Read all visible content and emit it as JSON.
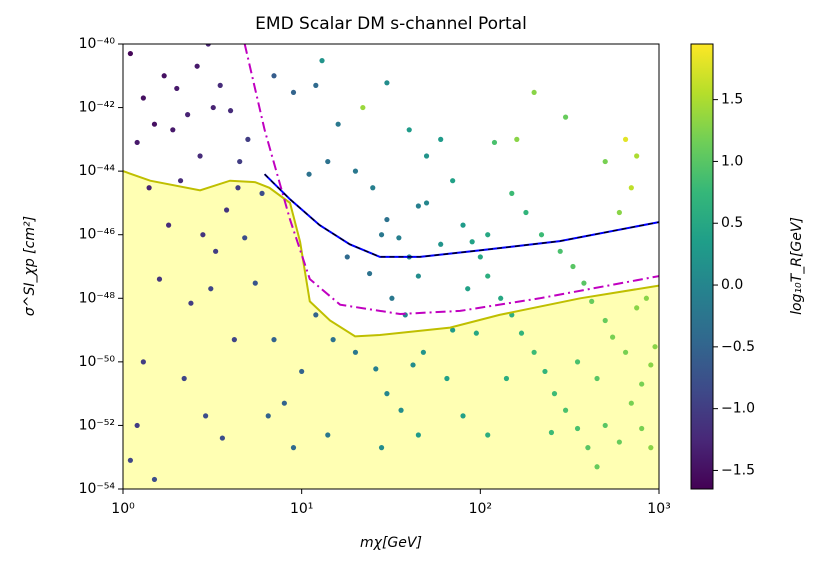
{
  "chart_data": {
    "type": "scatter",
    "title": "EMD Scalar DM s-channel Portal",
    "xlabel": "mχ[GeV]",
    "ylabel": "σ^SI_χp [cm²]",
    "xscale": "log",
    "yscale": "log",
    "xlim": [
      1,
      1000
    ],
    "ylim": [
      1e-54,
      1e-40
    ],
    "xticks": [
      {
        "value": 1,
        "label": "10⁰"
      },
      {
        "value": 10,
        "label": "10¹"
      },
      {
        "value": 100,
        "label": "10²"
      },
      {
        "value": 1000,
        "label": "10³"
      }
    ],
    "yticks": [
      {
        "value": 1e-54,
        "label": "10⁻⁵⁴"
      },
      {
        "value": 1e-52,
        "label": "10⁻⁵²"
      },
      {
        "value": 1e-50,
        "label": "10⁻⁵⁰"
      },
      {
        "value": 1e-48,
        "label": "10⁻⁴⁸"
      },
      {
        "value": 1e-46,
        "label": "10⁻⁴⁶"
      },
      {
        "value": 1e-44,
        "label": "10⁻⁴⁴"
      },
      {
        "value": 1e-42,
        "label": "10⁻⁴²"
      },
      {
        "value": 1e-40,
        "label": "10⁻⁴⁰"
      }
    ],
    "colormap": "viridis",
    "clim": [
      -1.65,
      1.95
    ],
    "colorbar_label": "log₁₀T_R[GeV]",
    "cticks": [
      {
        "value": -1.5,
        "label": "−1.5"
      },
      {
        "value": -1,
        "label": "−1.0"
      },
      {
        "value": -0.5,
        "label": "−0.5"
      },
      {
        "value": 0,
        "label": "0.0"
      },
      0.5,
      {
        "value": 1,
        "label": "1.0"
      },
      1.5
    ],
    "x": [
      1.1,
      1.3,
      1.5,
      1.2,
      1.7,
      2.0,
      2.3,
      2.6,
      3.0,
      3.5,
      4.0,
      1.4,
      1.8,
      2.1,
      2.8,
      3.3,
      3.8,
      4.5,
      1.6,
      2.4,
      3.1,
      4.2,
      1.3,
      2.2,
      2.9,
      1.2,
      4.8,
      5.5,
      6.5,
      3.6,
      1.1,
      1.5,
      7.0,
      2.7,
      4.4,
      1.9,
      3.2,
      6.0,
      5.0,
      7,
      9,
      12,
      11,
      14,
      16,
      20,
      22,
      25,
      28,
      30,
      35,
      40,
      45,
      18,
      24,
      32,
      38,
      15,
      20,
      26,
      30,
      36,
      42,
      48,
      12,
      10,
      9,
      14,
      28,
      45,
      8,
      50,
      50,
      40,
      30,
      13,
      45,
      60,
      70,
      80,
      90,
      100,
      110,
      130,
      150,
      170,
      200,
      230,
      260,
      300,
      350,
      400,
      450,
      500,
      600,
      700,
      800,
      900,
      950,
      120,
      150,
      180,
      220,
      280,
      330,
      380,
      420,
      500,
      550,
      650,
      750,
      850,
      600,
      700,
      650,
      750,
      500,
      300,
      200,
      160,
      80,
      110,
      65,
      95,
      140,
      250,
      350,
      450,
      800,
      900,
      70,
      85,
      60,
      110
    ],
    "values": [
      5e-41,
      2e-42,
      3e-43,
      8e-44,
      1e-41,
      4e-42,
      6e-43,
      2e-41,
      1e-40,
      5e-42,
      8e-43,
      3e-45,
      2e-46,
      5e-45,
      1e-46,
      3e-47,
      6e-46,
      2e-44,
      4e-48,
      7e-49,
      2e-48,
      5e-50,
      1e-50,
      3e-51,
      2e-52,
      1e-52,
      8e-47,
      3e-48,
      2e-52,
      4e-53,
      8e-54,
      2e-54,
      5e-50,
      3e-44,
      3e-45,
      2e-43,
      1e-42,
      2e-45,
      1e-43,
      1e-41,
      3e-42,
      5e-42,
      8e-45,
      2e-44,
      3e-43,
      1e-44,
      1e-42,
      3e-45,
      1e-46,
      3e-46,
      8e-47,
      2e-47,
      5e-48,
      2e-47,
      6e-48,
      1e-48,
      3e-49,
      5e-50,
      2e-50,
      6e-51,
      1e-51,
      3e-52,
      8e-51,
      2e-50,
      3e-49,
      5e-51,
      2e-53,
      5e-53,
      2e-53,
      5e-53,
      5e-52,
      1e-45,
      3e-44,
      2e-43,
      6e-42,
      3e-41,
      8e-46,
      1e-43,
      5e-45,
      2e-46,
      6e-47,
      2e-47,
      5e-48,
      1e-48,
      3e-49,
      8e-50,
      2e-50,
      5e-51,
      1e-51,
      3e-52,
      8e-53,
      2e-53,
      5e-54,
      1e-52,
      3e-53,
      5e-52,
      2e-51,
      8e-51,
      3e-50,
      8e-44,
      2e-45,
      5e-46,
      1e-46,
      3e-47,
      1e-47,
      3e-48,
      8e-49,
      2e-49,
      6e-50,
      2e-50,
      5e-49,
      1e-48,
      5e-46,
      3e-45,
      1e-43,
      3e-44,
      2e-44,
      5e-43,
      3e-42,
      1e-43,
      2e-52,
      5e-53,
      3e-51,
      8e-50,
      3e-51,
      6e-53,
      1e-50,
      3e-51,
      8e-53,
      2e-53,
      1e-49,
      2e-48,
      5e-47,
      1e-46
    ],
    "c": [
      -1.6,
      -1.5,
      -1.5,
      -1.4,
      -1.5,
      -1.4,
      -1.3,
      -1.4,
      -1.3,
      -1.2,
      -1.2,
      -1.3,
      -1.2,
      -1.2,
      -1.1,
      -1.0,
      -1.1,
      -1.0,
      -1.1,
      -1.0,
      -0.9,
      -0.9,
      -1.0,
      -0.9,
      -0.8,
      -1.0,
      -0.8,
      -0.7,
      -0.5,
      -0.8,
      -0.9,
      -0.8,
      -0.5,
      -1.2,
      -1.0,
      -1.4,
      -1.3,
      -0.8,
      -1.0,
      -0.6,
      -0.5,
      -0.4,
      -0.3,
      -0.3,
      -0.2,
      -0.2,
      1.4,
      -0.1,
      -0.2,
      -0.3,
      -0.1,
      0.0,
      0.1,
      -0.4,
      -0.3,
      -0.2,
      0.0,
      -0.3,
      -0.2,
      -0.1,
      0.0,
      0.1,
      0.1,
      0.2,
      -0.5,
      -0.5,
      -0.4,
      -0.2,
      0.1,
      0.3,
      -0.5,
      0.0,
      0.2,
      0.3,
      0.1,
      0.2,
      -0.1,
      0.3,
      0.4,
      0.3,
      0.4,
      0.5,
      0.6,
      0.5,
      0.6,
      0.7,
      0.8,
      0.7,
      0.8,
      0.9,
      0.9,
      1.0,
      1.1,
      1.0,
      1.1,
      1.2,
      1.2,
      1.3,
      1.3,
      0.9,
      0.8,
      0.7,
      0.8,
      0.9,
      1.0,
      1.0,
      1.1,
      1.1,
      1.2,
      1.2,
      1.3,
      1.3,
      1.3,
      1.6,
      1.8,
      1.5,
      1.2,
      1.1,
      1.3,
      1.3,
      0.4,
      0.6,
      0.4,
      0.5,
      0.6,
      0.8,
      0.9,
      1.0,
      1.2,
      1.3,
      0.3,
      0.4,
      0.2,
      0.5
    ],
    "lines": [
      {
        "color": "#bfbf00",
        "fill": "#ffffb3",
        "x": [
          1,
          1.42,
          2.7,
          3.97,
          5.5,
          6.6,
          8.6,
          9.8,
          11.1,
          14.4,
          19.9,
          27.4,
          67.7,
          128,
          362,
          1000
        ],
        "values": [
          1e-44,
          5e-45,
          2.5e-45,
          5e-45,
          4.5e-45,
          3e-45,
          1e-45,
          6e-47,
          8e-49,
          2e-49,
          6.3e-50,
          7e-50,
          1.2e-49,
          3e-49,
          1e-48,
          2.5e-48
        ]
      },
      {
        "color": "#c000c0",
        "dash": "dashdot",
        "x": [
          4.8,
          6.2,
          8.6,
          11.1,
          16.4,
          35.5,
          77,
          215,
          1000
        ],
        "values": [
          1e-40,
          2e-43,
          3e-46,
          4e-48,
          6.3e-49,
          3.2e-49,
          4e-49,
          1e-48,
          5e-48
        ]
      },
      {
        "color": "#0000ff",
        "dash_color": "#000000",
        "x": [
          6.2,
          8.6,
          12.6,
          18.6,
          27.4,
          45.9,
          99,
          279,
          1000
        ],
        "values": [
          8e-45,
          1.3e-45,
          2e-46,
          5e-47,
          2e-47,
          2e-47,
          3.2e-47,
          6.3e-47,
          2.5e-46
        ]
      }
    ]
  }
}
